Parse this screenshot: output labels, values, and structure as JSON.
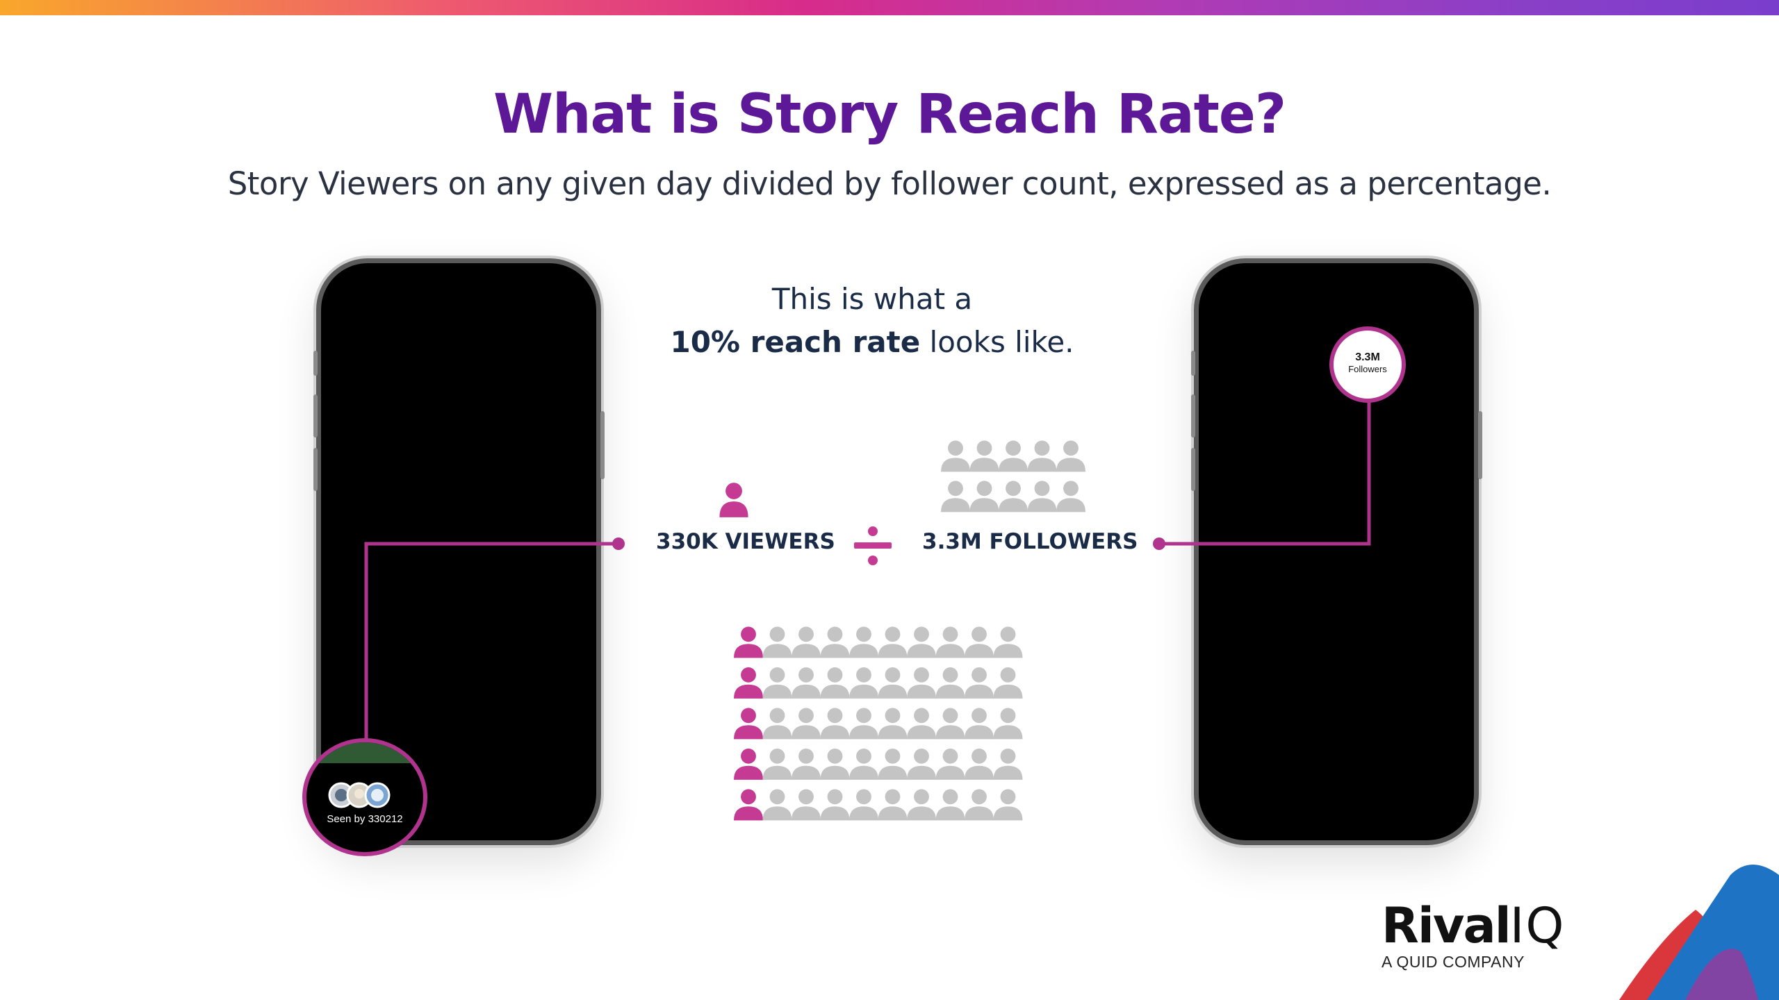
{
  "header": {
    "title": "What is Story Reach Rate?",
    "subtitle": "Story Viewers on any given day divided by follower count, expressed as a percentage."
  },
  "intro": {
    "line1": "This is what a",
    "bold": "10% reach rate",
    "rest": " looks like."
  },
  "equation": {
    "viewers_label": "330K VIEWERS",
    "followers_label": "3.3M FOLLOWERS",
    "operator_icon": "divide-icon"
  },
  "left_phone": {
    "seen_text": "Seen by 330212"
  },
  "right_phone": {
    "count": "3.3M",
    "label": "Followers"
  },
  "people_grid": {
    "rows": 5,
    "columns": 10,
    "highlighted_per_row": 1,
    "highlight_color": "#c53a92",
    "base_color": "#c4c4c4"
  },
  "brand": {
    "name_part1": "Rival",
    "name_part2": "IQ",
    "tagline": "A QUID COMPANY"
  },
  "colors": {
    "title": "#5c1896",
    "accent": "#b0348e",
    "text_dark": "#1a2b48"
  }
}
